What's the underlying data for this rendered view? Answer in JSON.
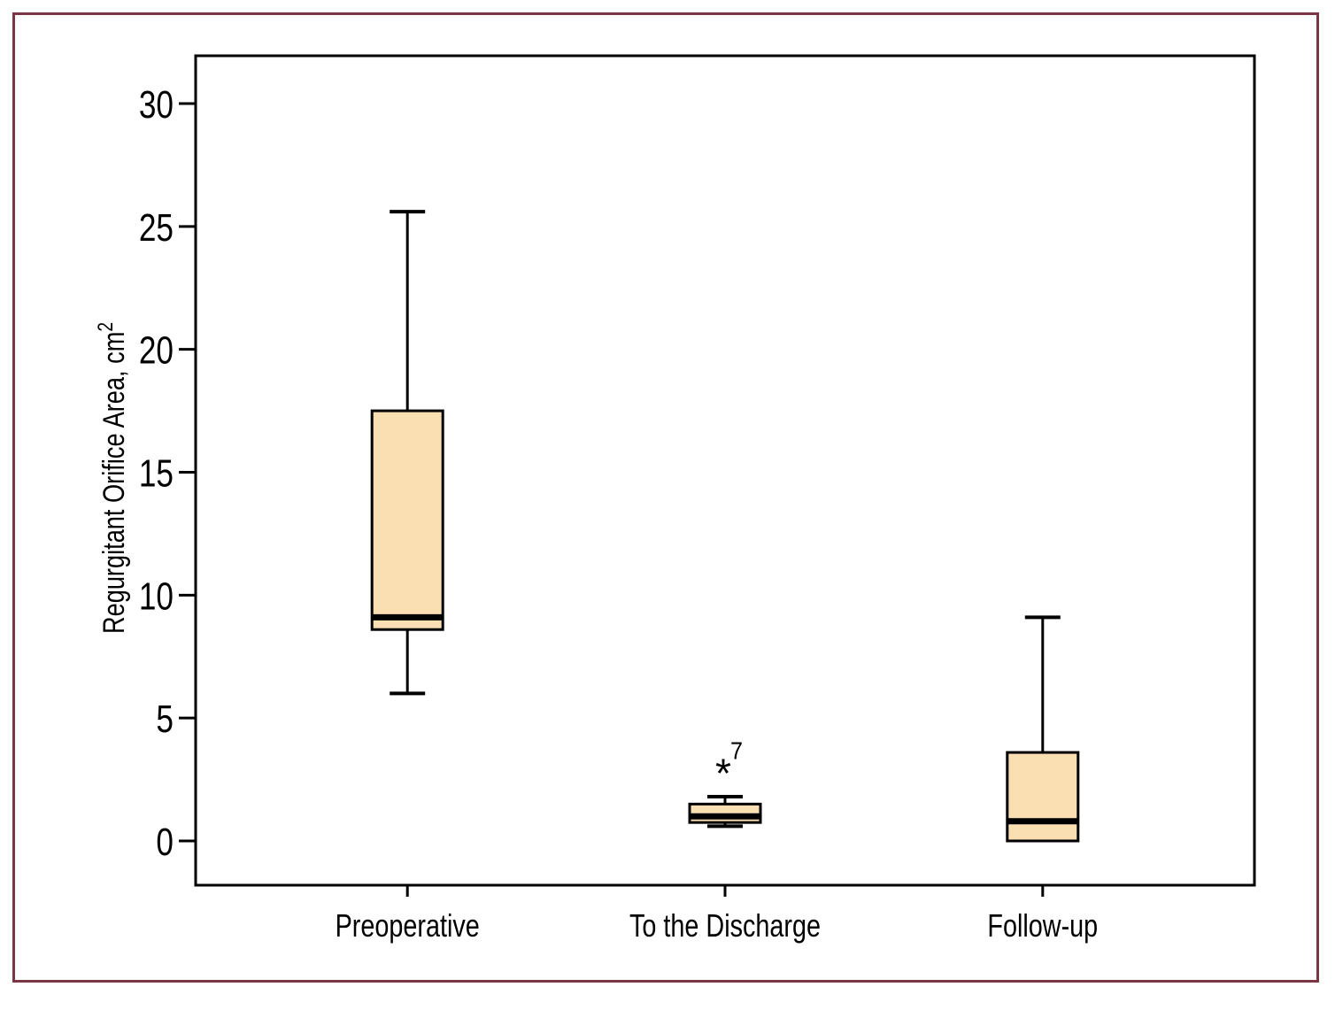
{
  "figure": {
    "border_color": "#7a3645",
    "background": "#ffffff"
  },
  "chart_data": {
    "type": "box",
    "title": "",
    "xlabel": "",
    "ylabel_text": "Regurgitant Orifice Area, cm",
    "ylabel_superscript": "2",
    "y_ticks": [
      0,
      5,
      10,
      15,
      20,
      25,
      30
    ],
    "ylim": [
      -1.8,
      31.9
    ],
    "grid": false,
    "legend_position": "none",
    "categories": [
      "Preoperative",
      "To the Discharge",
      "Follow-up"
    ],
    "series": [
      {
        "category": "Preoperative",
        "whisker_low": 6.0,
        "q1": 8.6,
        "median": 9.1,
        "q3": 17.5,
        "whisker_high": 25.6,
        "outliers": []
      },
      {
        "category": "To the Discharge",
        "whisker_low": 0.6,
        "q1": 0.75,
        "median": 1.0,
        "q3": 1.5,
        "whisker_high": 1.8,
        "outliers": [
          {
            "value": 3.0,
            "label": "7",
            "marker": "asterisk"
          }
        ]
      },
      {
        "category": "Follow-up",
        "whisker_low": 0.0,
        "q1": 0.0,
        "median": 0.8,
        "q3": 3.6,
        "whisker_high": 9.1,
        "outliers": []
      }
    ],
    "colors": {
      "box_fill": "#fadfb2",
      "box_stroke": "#000000",
      "median": "#000000",
      "whisker": "#000000",
      "axis": "#000000",
      "text": "#000000"
    }
  }
}
